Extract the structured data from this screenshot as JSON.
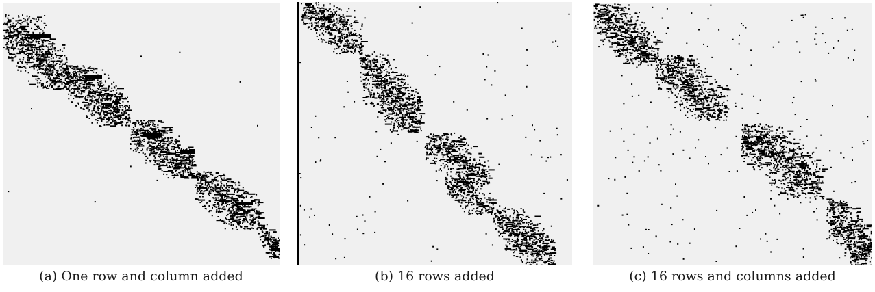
{
  "figure": {
    "panels": [
      {
        "caption": "(a) One row and column added",
        "matrix": {
          "blocks": 5,
          "pattern": "block-diagonal",
          "off_diagonal_density": "very low",
          "border_rows_cols": 1
        }
      },
      {
        "caption": "(b) 16 rows added",
        "matrix": {
          "blocks": 5,
          "pattern": "block-diagonal",
          "off_diagonal_density": "low",
          "border_rows_cols": 16
        }
      },
      {
        "caption": "(c) 16 rows and columns added",
        "matrix": {
          "blocks": 4,
          "pattern": "block-diagonal",
          "off_diagonal_density": "moderate",
          "border_rows_cols": 16
        }
      }
    ],
    "colors": {
      "background": "#f0f0f0",
      "nonzero": "#000000"
    }
  }
}
